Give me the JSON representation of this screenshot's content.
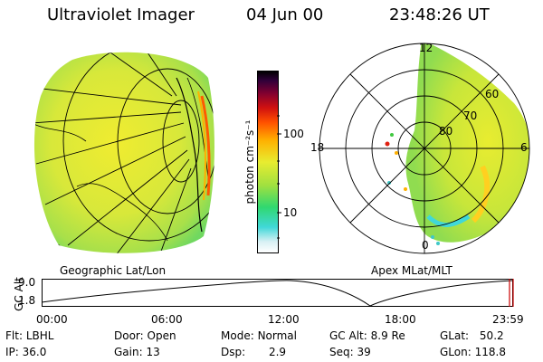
{
  "header": {
    "instrument": "Ultraviolet Imager",
    "date": "04 Jun 00",
    "time": "23:48:26 UT"
  },
  "colorbar": {
    "unit_label": "photon cm⁻²s⁻¹",
    "ticks": [
      {
        "label": "100",
        "value": 100
      },
      {
        "label": "10",
        "value": 10
      }
    ]
  },
  "panels": {
    "geo_label": "Geographic Lat/Lon",
    "polar_label": "Apex MLat/MLT",
    "polar_mlt_labels": {
      "top": "12",
      "left": "18",
      "right": "6",
      "bottom": "0"
    },
    "polar_lat_labels": [
      "60",
      "70",
      "80"
    ]
  },
  "altitude_plot": {
    "ylabel": "GC Alt",
    "yticks": [
      "9.0",
      "1.8"
    ],
    "xticks": [
      "00:00",
      "06:00",
      "12:00",
      "18:00",
      "23:59"
    ],
    "marker_color": "#cc0000"
  },
  "footer": {
    "rows": [
      [
        {
          "label": "Flt:",
          "value": "LBHL"
        },
        {
          "label": "Door:",
          "value": "Open"
        },
        {
          "label": "Mode:",
          "value": "Normal"
        },
        {
          "label": "GC Alt:",
          "value": "8.9 Re"
        },
        {
          "label": "GLat:",
          "value": "50.2"
        }
      ],
      [
        {
          "label": "IP:",
          "value": "36.0"
        },
        {
          "label": "Gain:",
          "value": "13"
        },
        {
          "label": "Dsp:",
          "value": "2.9"
        },
        {
          "label": "Seq:",
          "value": "39"
        },
        {
          "label": "GLon:",
          "value": "118.8"
        }
      ]
    ]
  }
}
